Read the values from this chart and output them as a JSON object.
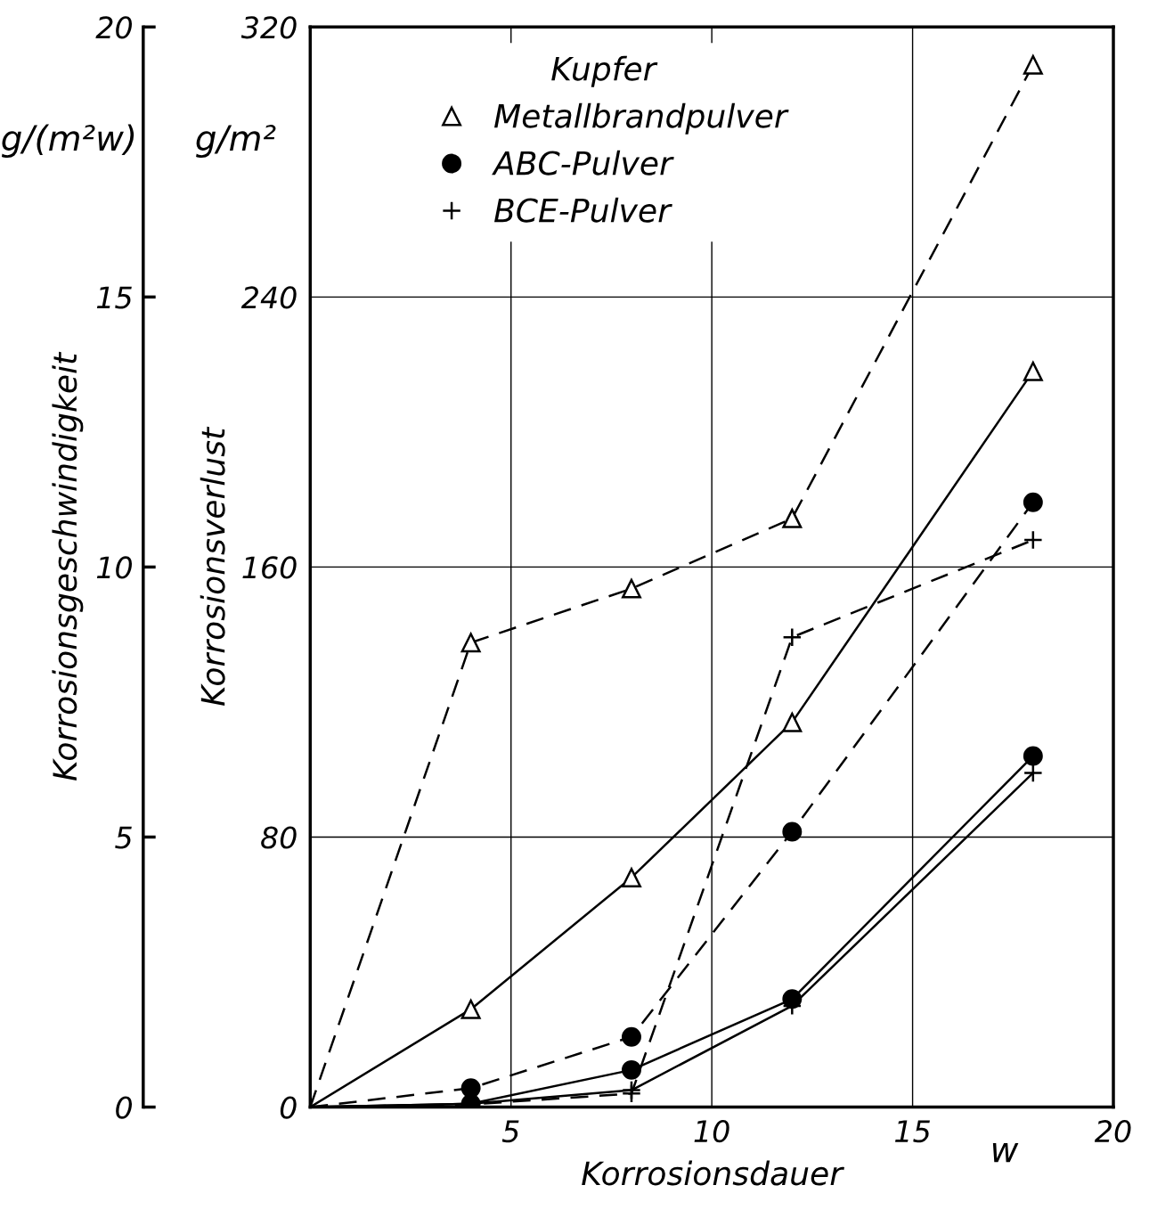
{
  "chart_data": {
    "type": "line",
    "legend_title": "Kupfer",
    "xlabel": "Korrosionsdauer",
    "ylabel": "Korrosionsverlust",
    "y2label": "Korrosionsgeschwindigkeit",
    "annotations": [
      "g/m²",
      "g/(m²w)",
      "w"
    ],
    "xlim": [
      0,
      20
    ],
    "xticks": [
      5,
      10,
      15,
      20
    ],
    "ylim": [
      0,
      320
    ],
    "yticks": [
      0,
      80,
      160,
      240,
      320
    ],
    "y2lim": [
      0,
      20
    ],
    "y2ticks": [
      0,
      5,
      10,
      15,
      20
    ],
    "grid": true,
    "legend": "top left",
    "series": [
      {
        "name": "Metallbrandpulver",
        "color": "#000000",
        "marker": "triangle",
        "line_style": "solid",
        "x": [
          0,
          4,
          8,
          12,
          18
        ],
        "values": [
          0,
          29,
          68,
          114,
          218
        ]
      },
      {
        "name": "ABC-Pulver",
        "color": "#000000",
        "marker": "circle",
        "line_style": "solid",
        "x": [
          0,
          4,
          8,
          12,
          18
        ],
        "values": [
          0,
          1,
          11,
          32,
          104
        ]
      },
      {
        "name": "BCE-Pulver",
        "color": "#000000",
        "marker": "cross",
        "line_style": "solid",
        "x": [
          0,
          4,
          8,
          12,
          18
        ],
        "values": [
          0,
          1,
          5,
          30,
          99
        ]
      },
      {
        "color": "#000000",
        "marker": "triangle",
        "line_style": "dashed",
        "axis": "y2",
        "x": [
          0,
          4,
          8,
          12,
          18
        ],
        "values": [
          0,
          8.6,
          9.6,
          10.9,
          19.3
        ]
      },
      {
        "color": "#000000",
        "marker": "circle",
        "line_style": "dashed",
        "axis": "y2",
        "x": [
          0,
          4,
          8,
          12,
          18
        ],
        "values": [
          0,
          0.35,
          1.3,
          5.1,
          11.2
        ]
      },
      {
        "color": "#000000",
        "marker": "cross",
        "line_style": "dashed",
        "axis": "y2",
        "x": [
          0,
          4,
          8,
          12,
          18
        ],
        "values": [
          0,
          0.05,
          0.25,
          8.7,
          10.5
        ]
      }
    ]
  }
}
